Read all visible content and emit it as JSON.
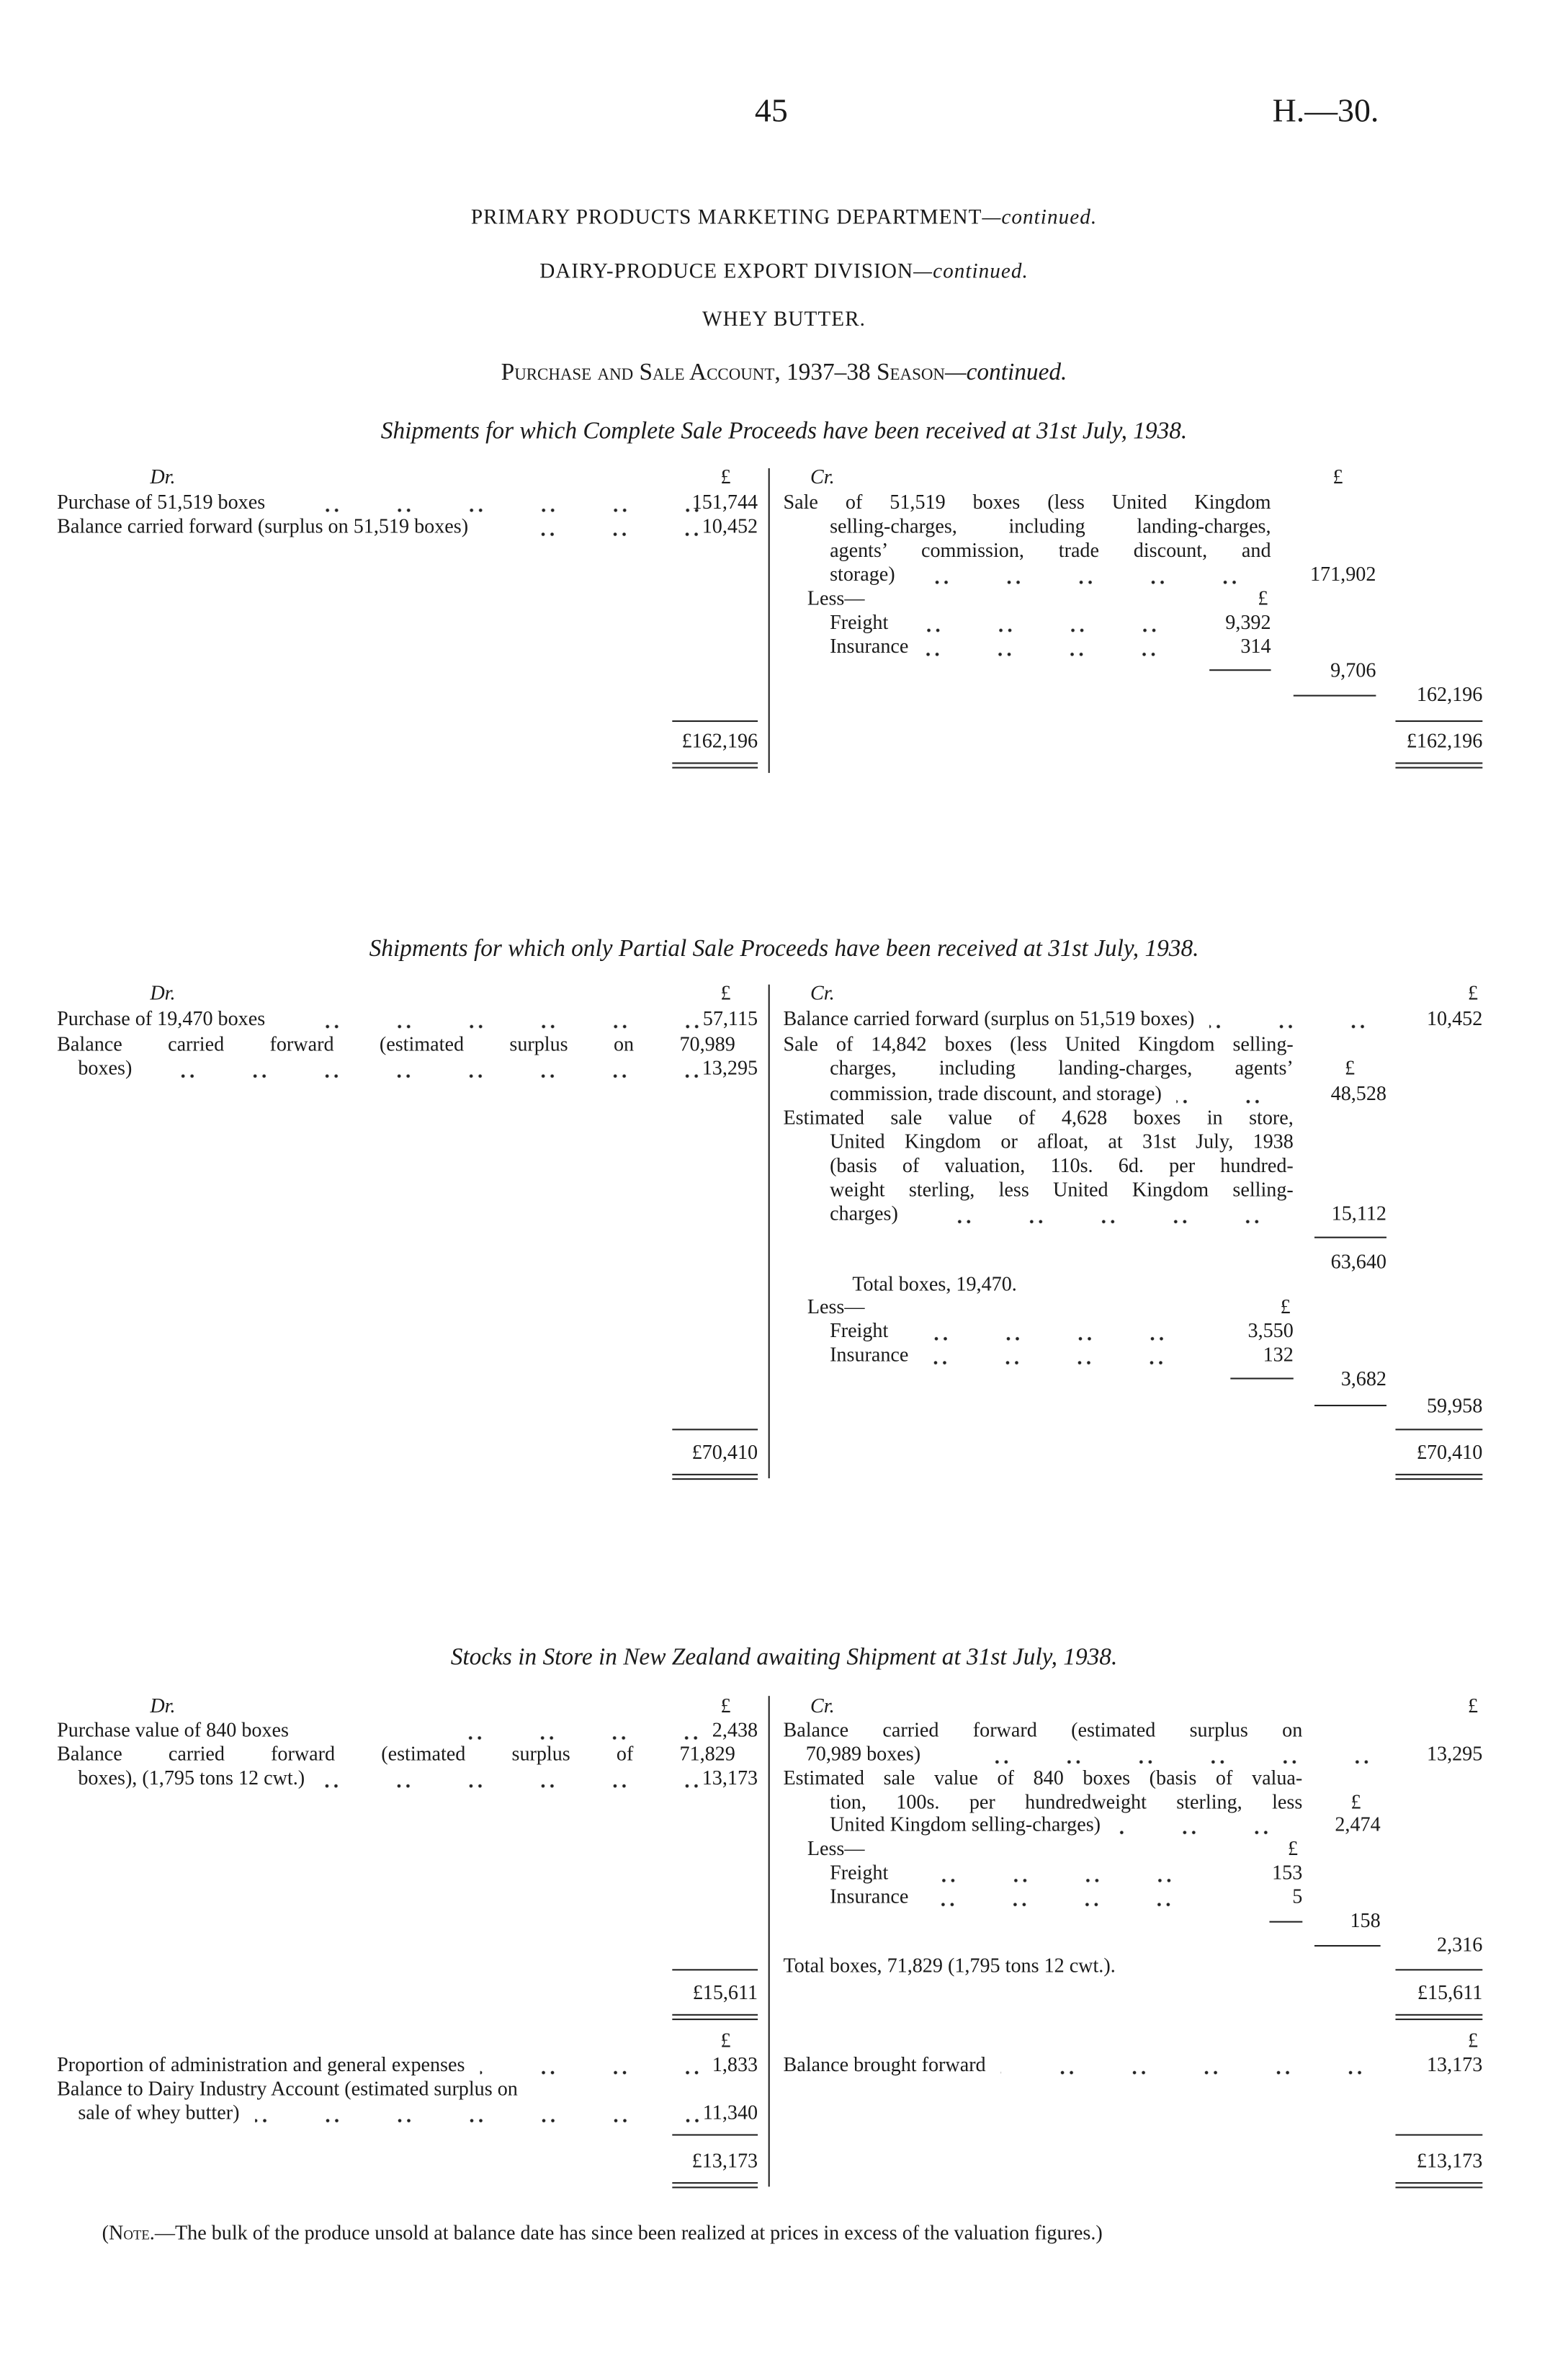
{
  "header": {
    "page_number": "45",
    "reference": "H.—30."
  },
  "titles": {
    "department": "PRIMARY PRODUCTS MARKETING DEPARTMENT",
    "department_cont": "—continued.",
    "division": "DAIRY-PRODUCE EXPORT DIVISION",
    "division_cont": "—continued.",
    "product": "WHEY BUTTER.",
    "account": "Purchase and Sale Account, 1937–38 Season",
    "account_cont": "—continued."
  },
  "common": {
    "dr": "Dr.",
    "cr": "Cr.",
    "pound": "£",
    "less": "Less—",
    "freight": "Freight",
    "insurance": "Insurance"
  },
  "s1": {
    "title": "Shipments for which Complete Sale Proceeds have been received at 31st July, 1938.",
    "left": [
      {
        "text": "Purchase of 51,519 boxes",
        "amount": "151,744"
      },
      {
        "text": "Balance carried forward (surplus on 51,519 boxes)",
        "amount": "10,452"
      }
    ],
    "right_lines": [
      "Sale of 51,519 boxes (less United Kingdom",
      "selling-charges, including landing-charges,",
      "agents’ commission, trade discount, and",
      "storage)"
    ],
    "sale_amount": "171,902",
    "freight": "9,392",
    "insurance": "314",
    "less_total": "9,706",
    "net": "162,196",
    "total": "£162,196"
  },
  "s2": {
    "title": "Shipments for which only Partial Sale Proceeds have been received at 31st July, 1938.",
    "left": [
      "Purchase of 19,470 boxes",
      "Balance carried forward (estimated surplus on 70,989",
      "boxes)"
    ],
    "left_amounts": [
      "57,115",
      "13,295"
    ],
    "right_lines": [
      "Balance carried forward (surplus on 51,519 boxes)",
      "Sale of 14,842 boxes (less United Kingdom selling-",
      "charges, including landing-charges, agents’",
      "commission, trade discount, and storage)",
      "Estimated sale value of 4,628 boxes in store,",
      "United Kingdom or afloat, at 31st July, 1938",
      "(basis of valuation, 110s. 6d. per hundred-",
      "weight sterling, less United Kingdom selling-",
      "charges)"
    ],
    "balance": "10,452",
    "sale": "48,528",
    "estimated": "15,112",
    "subtotal": "63,640",
    "total_boxes": "Total boxes, 19,470.",
    "freight": "3,550",
    "insurance": "132",
    "less_total": "3,682",
    "net": "59,958",
    "total": "£70,410"
  },
  "s3": {
    "title": "Stocks in Store in New Zealand awaiting Shipment at 31st July, 1938.",
    "left": [
      "Purchase value of 840 boxes",
      "Balance carried forward (estimated surplus of 71,829",
      "boxes), (1,795 tons 12 cwt.)"
    ],
    "left_amounts": [
      "2,438",
      "13,173"
    ],
    "right_lines": [
      "Balance carried forward (estimated surplus on",
      "70,989 boxes)",
      "Estimated sale value of 840 boxes (basis of valua-",
      "tion, 100s. per hundredweight sterling, less",
      "United Kingdom selling-charges)"
    ],
    "balance": "13,295",
    "estimated": "2,474",
    "freight": "153",
    "insurance": "5",
    "less_total": "158",
    "net": "2,316",
    "total_boxes": "Total boxes, 71,829 (1,795 tons 12 cwt.).",
    "total": "£15,611",
    "left2": [
      "Proportion of administration and general expenses",
      "Balance to Dairy Industry Account (estimated surplus on",
      "sale of whey butter)"
    ],
    "left2_amounts": [
      "1,833",
      "11,340"
    ],
    "right2": "Balance brought forward",
    "right2_amount": "13,173",
    "total2": "£13,173"
  },
  "note": {
    "label": "Note",
    "text": ".—The bulk of the produce unsold at balance date has since been realized at prices in excess of the valuation figures.)",
    "open": "("
  }
}
